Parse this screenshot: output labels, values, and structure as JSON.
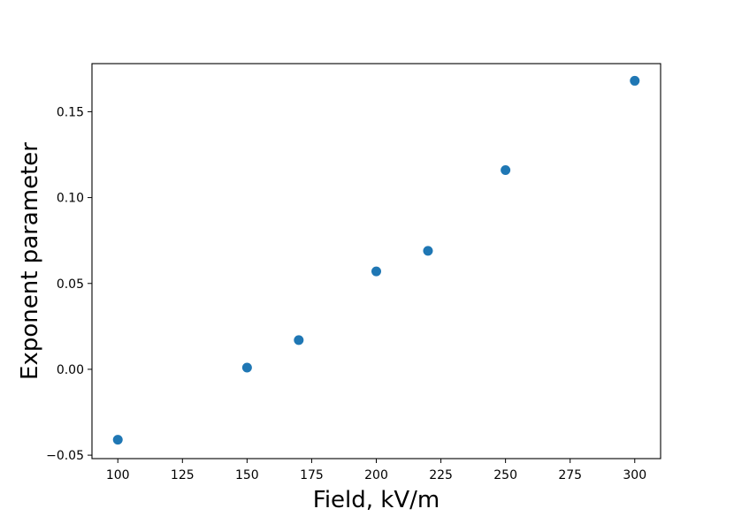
{
  "chart_data": {
    "type": "scatter",
    "title": "",
    "xlabel": "Field, kV/m",
    "ylabel": "Exponent parameter",
    "xlim": [
      90,
      310
    ],
    "ylim": [
      -0.052,
      0.178
    ],
    "x_ticks": [
      100,
      125,
      150,
      175,
      200,
      225,
      250,
      275,
      300
    ],
    "x_tick_labels": [
      "100",
      "125",
      "150",
      "175",
      "200",
      "225",
      "250",
      "275",
      "300"
    ],
    "y_ticks": [
      -0.05,
      0.0,
      0.05,
      0.1,
      0.15
    ],
    "y_tick_labels": [
      "−0.05",
      "0.00",
      "0.05",
      "0.10",
      "0.15"
    ],
    "grid": false,
    "legend": "none",
    "series": [
      {
        "color": "#1f77b4",
        "x": [
          100,
          150,
          170,
          200,
          220,
          250,
          300
        ],
        "y": [
          -0.041,
          0.001,
          0.017,
          0.057,
          0.069,
          0.116,
          0.168
        ]
      }
    ]
  }
}
